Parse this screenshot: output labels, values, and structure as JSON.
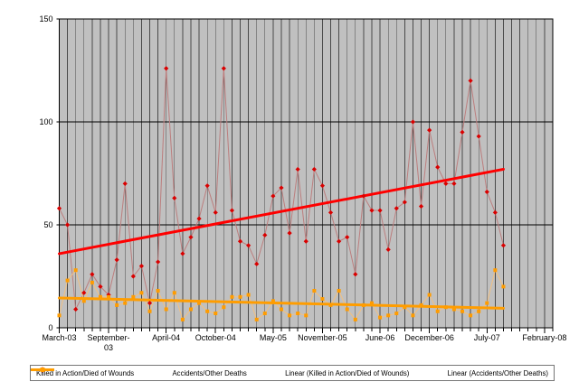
{
  "chart_data": {
    "type": "line",
    "title": "",
    "months": [
      "Mar-03",
      "Apr-03",
      "May-03",
      "Jun-03",
      "Jul-03",
      "Aug-03",
      "Sep-03",
      "Oct-03",
      "Nov-03",
      "Dec-03",
      "Jan-04",
      "Feb-04",
      "Mar-04",
      "Apr-04",
      "May-04",
      "Jun-04",
      "Jul-04",
      "Aug-04",
      "Sep-04",
      "Oct-04",
      "Nov-04",
      "Dec-04",
      "Jan-05",
      "Feb-05",
      "Mar-05",
      "Apr-05",
      "May-05",
      "Jun-05",
      "Jul-05",
      "Aug-05",
      "Sep-05",
      "Oct-05",
      "Nov-05",
      "Dec-05",
      "Jan-06",
      "Feb-06",
      "Mar-06",
      "Apr-06",
      "May-06",
      "Jun-06",
      "Jul-06",
      "Aug-06",
      "Sep-06",
      "Oct-06",
      "Nov-06",
      "Dec-06",
      "Jan-07",
      "Feb-07",
      "Mar-07",
      "Apr-07",
      "May-07",
      "Jun-07",
      "Jul-07",
      "Aug-07",
      "Sep-07"
    ],
    "series": [
      {
        "name": "Killed in Action/Died of Wounds",
        "marker": "diamond",
        "marker_color": "#d90000",
        "line_color": "#bc7e7e",
        "values": [
          58,
          50,
          9,
          17,
          26,
          20,
          16,
          33,
          70,
          25,
          30,
          12,
          32,
          126,
          63,
          36,
          44,
          53,
          69,
          56,
          126,
          57,
          42,
          40,
          31,
          45,
          64,
          68,
          46,
          77,
          42,
          77,
          69,
          56,
          42,
          44,
          26,
          64,
          57,
          57,
          38,
          58,
          61,
          100,
          59,
          96,
          78,
          70,
          70,
          95,
          120,
          93,
          66,
          56,
          40
        ]
      },
      {
        "name": "Accidents/Other Deaths",
        "marker": "square",
        "marker_color": "#ff9c00",
        "line_color": "#f2c080",
        "values": [
          6,
          23,
          28,
          13,
          22,
          15,
          15,
          11,
          12,
          15,
          17,
          8,
          18,
          9,
          17,
          4,
          9,
          12,
          8,
          7,
          10,
          15,
          15,
          16,
          4,
          7,
          13,
          9,
          6,
          7,
          6,
          18,
          14,
          11,
          18,
          9,
          4,
          11,
          12,
          5,
          6,
          7,
          10,
          6,
          11,
          16,
          8,
          10,
          9,
          8,
          6,
          8,
          12,
          28,
          20
        ]
      }
    ],
    "trendlines": [
      {
        "name": "Linear (Killed in Action/Died of Wounds)",
        "color": "#ff0000",
        "start_value": 36,
        "end_value": 77
      },
      {
        "name": "Linear (Accidents/Other Deaths)",
        "color": "#ff9d00",
        "start_value": 14.5,
        "end_value": 9.5
      }
    ],
    "y_axis": {
      "min": 0,
      "max": 150,
      "ticks": [
        0,
        50,
        100,
        150
      ]
    },
    "x_axis_tick_labels": [
      {
        "lines": [
          "March-03"
        ],
        "month_index": 0
      },
      {
        "lines": [
          "September-",
          "03"
        ],
        "month_index": 6
      },
      {
        "lines": [
          "April-04"
        ],
        "month_index": 13
      },
      {
        "lines": [
          "October-04"
        ],
        "month_index": 19
      },
      {
        "lines": [
          "May-05"
        ],
        "month_index": 26
      },
      {
        "lines": [
          "November-05"
        ],
        "month_index": 32
      },
      {
        "lines": [
          "June-06"
        ],
        "month_index": 39
      },
      {
        "lines": [
          "December-06"
        ],
        "month_index": 45
      },
      {
        "lines": [
          "July-07"
        ],
        "month_index": 52
      },
      {
        "lines": [
          "February-08"
        ],
        "month_index": 59
      }
    ],
    "x_axis_total_months": 60,
    "grid": "vertical-monthly",
    "legend_position": "bottom",
    "legend": [
      {
        "label": "Killed in Action/Died of Wounds",
        "sample": "thin-red-line-with-diamond"
      },
      {
        "label": "Accidents/Other Deaths",
        "sample": "thin-orange-line-with-square"
      },
      {
        "label": "Linear (Killed in Action/Died of Wounds)",
        "sample": "thick-red-line"
      },
      {
        "label": "Linear (Accidents/Other Deaths)",
        "sample": "thick-orange-line"
      }
    ],
    "colors": {
      "plot_background": "#c0c0c0",
      "gridline": "#4a4a4a",
      "axis": "#000000",
      "text": "#000000"
    }
  }
}
